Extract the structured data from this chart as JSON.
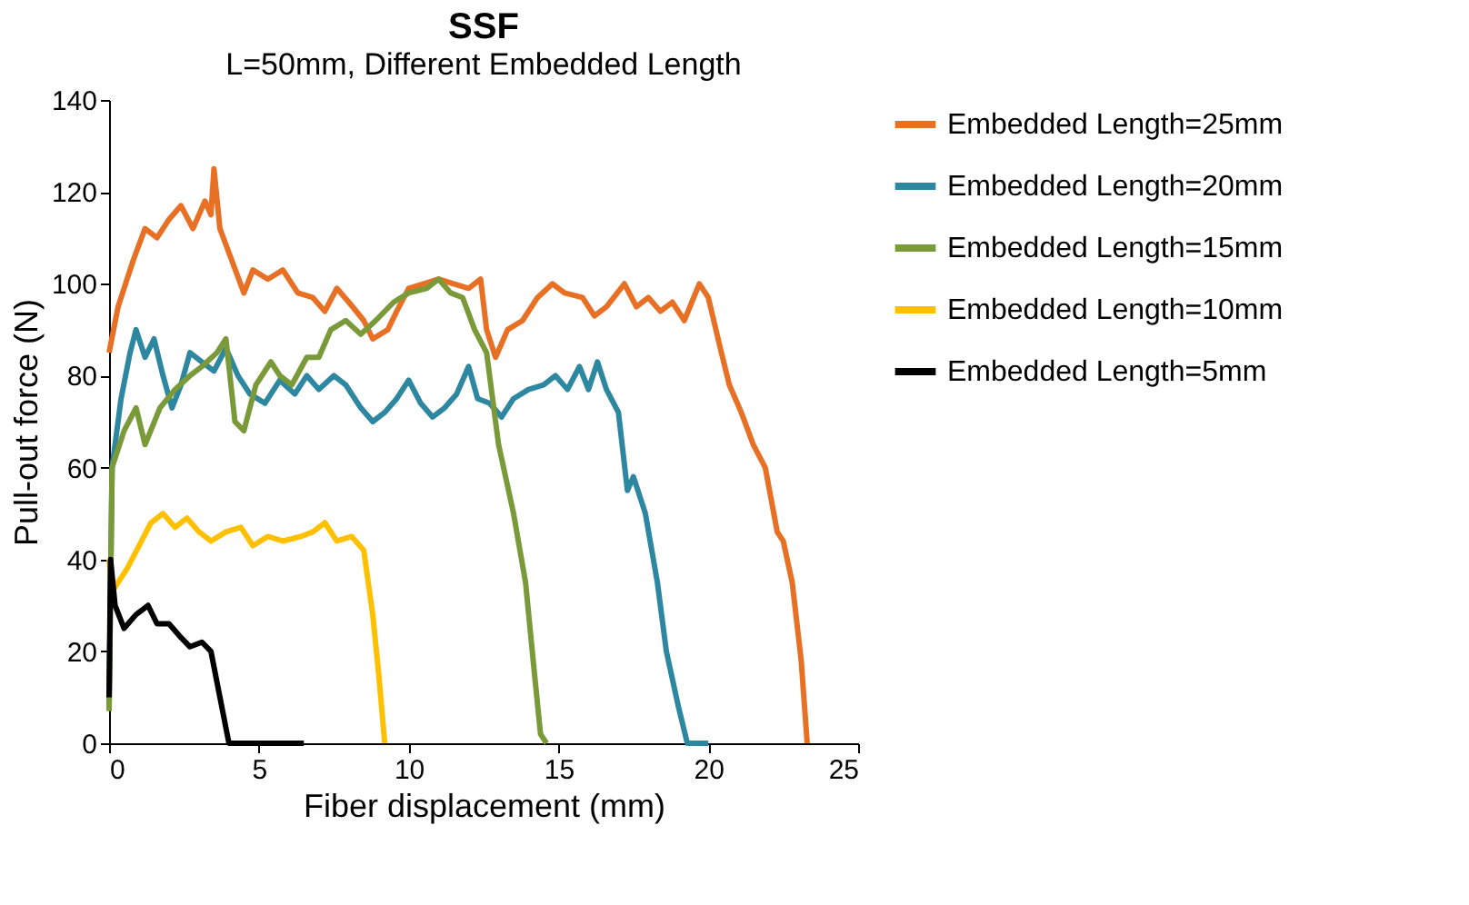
{
  "chart_data": {
    "type": "line",
    "title": "SSF",
    "subtitle": "L=50mm, Different Embedded Length",
    "xlabel": "Fiber displacement (mm)",
    "ylabel": "Pull-out force (N)",
    "xlim": [
      0,
      25
    ],
    "xticks": [
      0,
      5,
      10,
      15,
      20,
      25
    ],
    "ylim": [
      0,
      140
    ],
    "yticks": [
      0,
      20,
      40,
      60,
      80,
      100,
      120,
      140
    ],
    "grid": false,
    "legend": "right",
    "marker": "none",
    "line_style": "solid",
    "series": [
      {
        "name": "Embedded Length=25mm",
        "color": "#e87024",
        "x": [
          0,
          0.3,
          0.8,
          1.2,
          1.6,
          2.0,
          2.4,
          2.8,
          3.2,
          3.4,
          3.5,
          3.7,
          4.1,
          4.5,
          4.8,
          5.3,
          5.8,
          6.3,
          6.8,
          7.2,
          7.6,
          8.0,
          8.5,
          8.8,
          9.3,
          9.6,
          10.0,
          10.5,
          11.0,
          11.5,
          12.0,
          12.4,
          12.6,
          12.9,
          13.3,
          13.8,
          14.3,
          14.8,
          15.2,
          15.8,
          16.2,
          16.6,
          17.2,
          17.6,
          18.0,
          18.4,
          18.8,
          19.2,
          19.7,
          20.0,
          20.4,
          20.7,
          21.1,
          21.5,
          21.9,
          22.3,
          22.5,
          22.8,
          23.1,
          23.3
        ],
        "values": [
          85,
          95,
          105,
          112,
          110,
          114,
          117,
          112,
          118,
          115,
          125,
          112,
          105,
          98,
          103,
          101,
          103,
          98,
          97,
          94,
          99,
          96,
          92,
          88,
          90,
          94,
          99,
          100,
          101,
          100,
          99,
          101,
          90,
          84,
          90,
          92,
          97,
          100,
          98,
          97,
          93,
          95,
          100,
          95,
          97,
          94,
          96,
          92,
          100,
          97,
          86,
          78,
          72,
          65,
          60,
          46,
          44,
          35,
          18,
          0
        ]
      },
      {
        "name": "Embedded Length=20mm",
        "color": "#2e87a0",
        "x": [
          0,
          0.1,
          0.4,
          0.7,
          0.9,
          1.2,
          1.5,
          1.8,
          2.1,
          2.4,
          2.7,
          3.1,
          3.5,
          3.9,
          4.3,
          4.7,
          5.2,
          5.7,
          6.2,
          6.6,
          7.0,
          7.5,
          7.9,
          8.4,
          8.8,
          9.2,
          9.6,
          10.0,
          10.4,
          10.8,
          11.2,
          11.6,
          12.0,
          12.3,
          12.7,
          13.1,
          13.5,
          14.0,
          14.5,
          14.9,
          15.3,
          15.7,
          16.0,
          16.3,
          16.6,
          17.0,
          17.3,
          17.5,
          17.9,
          18.3,
          18.6,
          19.0,
          19.3,
          20.0
        ],
        "values": [
          8,
          60,
          75,
          85,
          90,
          84,
          88,
          80,
          73,
          78,
          85,
          83,
          81,
          86,
          80,
          76,
          74,
          79,
          76,
          80,
          77,
          80,
          78,
          73,
          70,
          72,
          75,
          79,
          74,
          71,
          73,
          76,
          82,
          75,
          74,
          71,
          75,
          77,
          78,
          80,
          77,
          82,
          77,
          83,
          77,
          72,
          55,
          58,
          50,
          35,
          20,
          8,
          0,
          0
        ]
      },
      {
        "name": "Embedded Length=15mm",
        "color": "#7a9a3a",
        "x": [
          0,
          0.1,
          0.5,
          0.9,
          1.2,
          1.7,
          2.2,
          2.7,
          3.1,
          3.6,
          3.9,
          4.2,
          4.5,
          4.9,
          5.4,
          5.7,
          6.1,
          6.6,
          7.0,
          7.4,
          7.9,
          8.4,
          8.9,
          9.5,
          10.0,
          10.6,
          11.0,
          11.4,
          11.8,
          12.2,
          12.6,
          13.0,
          13.5,
          13.9,
          14.2,
          14.4,
          14.6
        ],
        "values": [
          7,
          60,
          68,
          73,
          65,
          73,
          77,
          80,
          82,
          85,
          88,
          70,
          68,
          78,
          83,
          80,
          78,
          84,
          84,
          90,
          92,
          89,
          92,
          96,
          98,
          99,
          101,
          98,
          97,
          90,
          85,
          65,
          50,
          35,
          15,
          2,
          0
        ]
      },
      {
        "name": "Embedded Length=10mm",
        "color": "#ffc000",
        "x": [
          0,
          0.1,
          0.6,
          1.0,
          1.4,
          1.8,
          2.2,
          2.6,
          3.0,
          3.4,
          3.9,
          4.4,
          4.8,
          5.3,
          5.8,
          6.4,
          6.8,
          7.2,
          7.6,
          8.1,
          8.5,
          8.8,
          9.0,
          9.2
        ],
        "values": [
          40,
          33,
          38,
          43,
          48,
          50,
          47,
          49,
          46,
          44,
          46,
          47,
          43,
          45,
          44,
          45,
          46,
          48,
          44,
          45,
          42,
          28,
          15,
          0
        ]
      },
      {
        "name": "Embedded Length=5mm",
        "color": "#000000",
        "x": [
          0,
          0.05,
          0.2,
          0.5,
          0.9,
          1.3,
          1.6,
          2.0,
          2.4,
          2.7,
          3.1,
          3.4,
          3.7,
          4.0,
          6.5
        ],
        "values": [
          10,
          40,
          30,
          25,
          28,
          30,
          26,
          26,
          23,
          21,
          22,
          20,
          10,
          0,
          0
        ]
      }
    ]
  }
}
